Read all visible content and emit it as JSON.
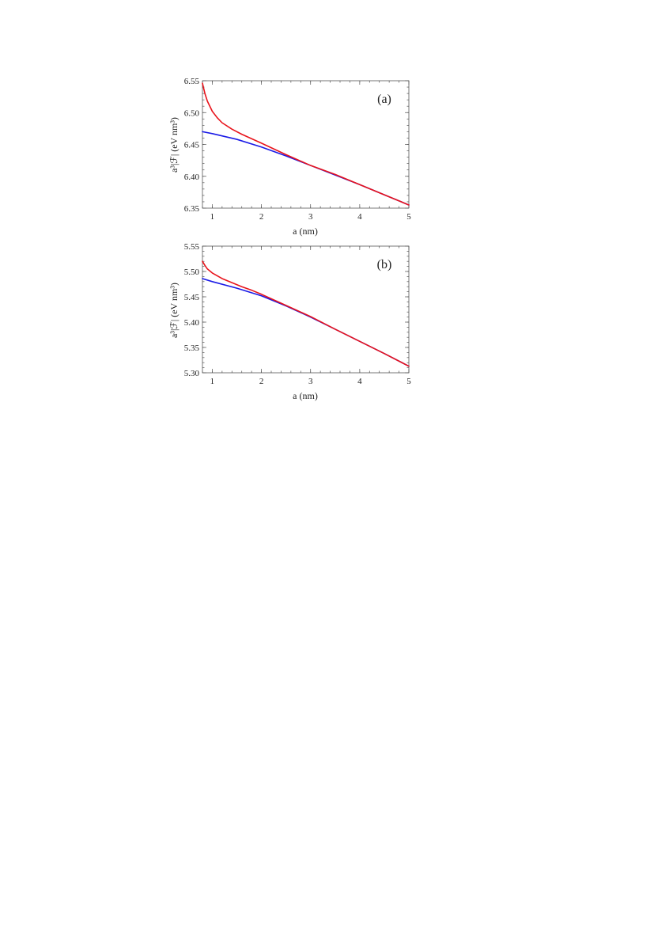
{
  "chart_data": [
    {
      "type": "line",
      "panel_label": "(a)",
      "xlabel": "a (nm)",
      "ylabel": "a³|ℱ| (eV nm³)",
      "xlim": [
        0.8,
        5
      ],
      "ylim": [
        6.35,
        6.55
      ],
      "xticks": [
        1,
        2,
        3,
        4,
        5
      ],
      "xtick_labels": [
        "1",
        "2",
        "3",
        "4",
        "5"
      ],
      "yticks": [
        6.35,
        6.4,
        6.45,
        6.5,
        6.55
      ],
      "ytick_labels": [
        "6.35",
        "6.40",
        "6.45",
        "6.50",
        "6.55"
      ],
      "grid": false,
      "legend": false,
      "series": [
        {
          "color": "#e8131b",
          "x": [
            0.8,
            0.85,
            0.9,
            1.0,
            1.1,
            1.2,
            1.4,
            1.6,
            1.8,
            2.0,
            2.5,
            3.0,
            3.5,
            4.0,
            4.5,
            5.0
          ],
          "y": [
            6.546,
            6.53,
            6.518,
            6.502,
            6.492,
            6.484,
            6.474,
            6.466,
            6.459,
            6.452,
            6.434,
            6.417,
            6.403,
            6.387,
            6.371,
            6.355
          ]
        },
        {
          "color": "#1a1ae6",
          "x": [
            0.8,
            1.0,
            1.5,
            2.0,
            2.5,
            3.0,
            3.5,
            4.0,
            4.5,
            5.0
          ],
          "y": [
            6.47,
            6.467,
            6.458,
            6.446,
            6.432,
            6.417,
            6.402,
            6.387,
            6.371,
            6.355
          ]
        }
      ]
    },
    {
      "type": "line",
      "panel_label": "(b)",
      "xlabel": "a (nm)",
      "ylabel": "a³|ℱ| (eV nm³)",
      "xlim": [
        0.8,
        5
      ],
      "ylim": [
        5.3,
        5.55
      ],
      "xticks": [
        1,
        2,
        3,
        4,
        5
      ],
      "xtick_labels": [
        "1",
        "2",
        "3",
        "4",
        "5"
      ],
      "yticks": [
        5.3,
        5.35,
        5.4,
        5.45,
        5.5,
        5.55
      ],
      "ytick_labels": [
        "5.30",
        "5.35",
        "5.40",
        "5.45",
        "5.50",
        "5.55"
      ],
      "grid": false,
      "legend": false,
      "series": [
        {
          "color": "#e8131b",
          "x": [
            0.8,
            0.85,
            0.9,
            1.0,
            1.2,
            1.4,
            1.6,
            1.8,
            2.0,
            2.5,
            3.0,
            3.5,
            4.0,
            4.5,
            5.0
          ],
          "y": [
            5.52,
            5.512,
            5.505,
            5.497,
            5.486,
            5.478,
            5.47,
            5.463,
            5.455,
            5.433,
            5.411,
            5.386,
            5.362,
            5.338,
            5.313
          ]
        },
        {
          "color": "#1a1ae6",
          "x": [
            0.8,
            1.0,
            1.5,
            2.0,
            2.5,
            3.0,
            3.5,
            4.0,
            4.5,
            5.0
          ],
          "y": [
            5.486,
            5.48,
            5.467,
            5.452,
            5.432,
            5.41,
            5.386,
            5.362,
            5.338,
            5.313
          ]
        }
      ]
    }
  ]
}
